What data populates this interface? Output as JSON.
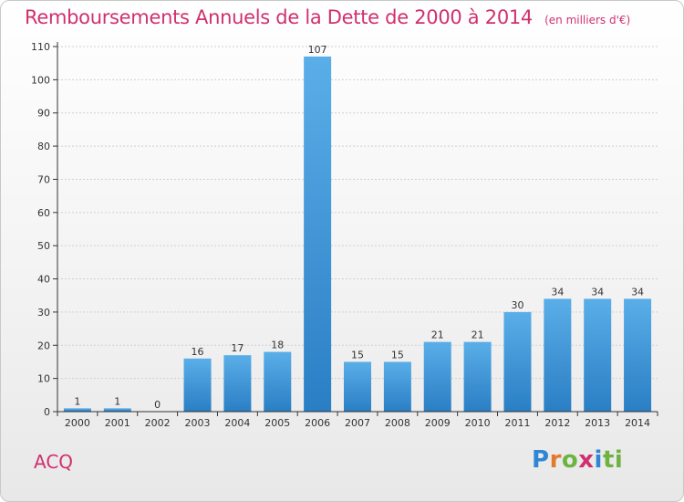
{
  "title": "Remboursements Annuels de la Dette de 2000 à 2014",
  "subtitle": "(en milliers d'€)",
  "commune": "ACQ",
  "logo_text": "Proxiti",
  "colors": {
    "title": "#d0306e",
    "bar_top": "#5aaee8",
    "bar_bottom": "#2a7ec4",
    "axis": "#333333",
    "grid": "#d0d0d0"
  },
  "chart_data": {
    "type": "bar",
    "categories": [
      "2000",
      "2001",
      "2002",
      "2003",
      "2004",
      "2005",
      "2006",
      "2007",
      "2008",
      "2009",
      "2010",
      "2011",
      "2012",
      "2013",
      "2014"
    ],
    "values": [
      1,
      1,
      0,
      16,
      17,
      18,
      107,
      15,
      15,
      21,
      21,
      30,
      34,
      34,
      34
    ],
    "ylim": [
      0,
      110
    ],
    "yticks": [
      0,
      10,
      20,
      30,
      40,
      50,
      60,
      70,
      80,
      90,
      100,
      110
    ],
    "grid": true,
    "data_labels": true
  }
}
